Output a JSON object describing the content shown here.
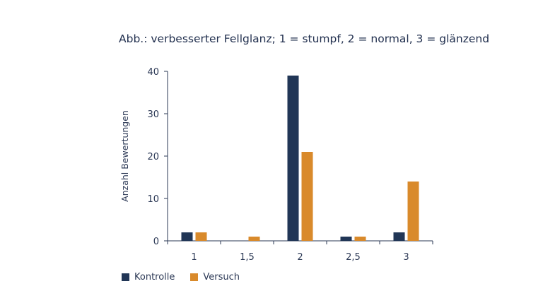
{
  "chart_data": {
    "type": "bar",
    "title": "Abb.: verbesserter Fellglanz; 1 = stumpf, 2 = normal, 3 = glänzend",
    "xlabel": "",
    "ylabel": "Anzahl Bewertungen",
    "categories": [
      "1",
      "1,5",
      "2",
      "2,5",
      "3"
    ],
    "series": [
      {
        "name": "Kontrolle",
        "color": "#213656",
        "values": [
          2,
          0,
          39,
          1,
          2
        ]
      },
      {
        "name": "Versuch",
        "color": "#d98a2b",
        "values": [
          2,
          1,
          21,
          1,
          14
        ]
      }
    ],
    "ylim": [
      0,
      40
    ],
    "yticks": [
      0,
      10,
      20,
      30,
      40
    ],
    "grid": false,
    "legend_position": "bottom-left"
  }
}
